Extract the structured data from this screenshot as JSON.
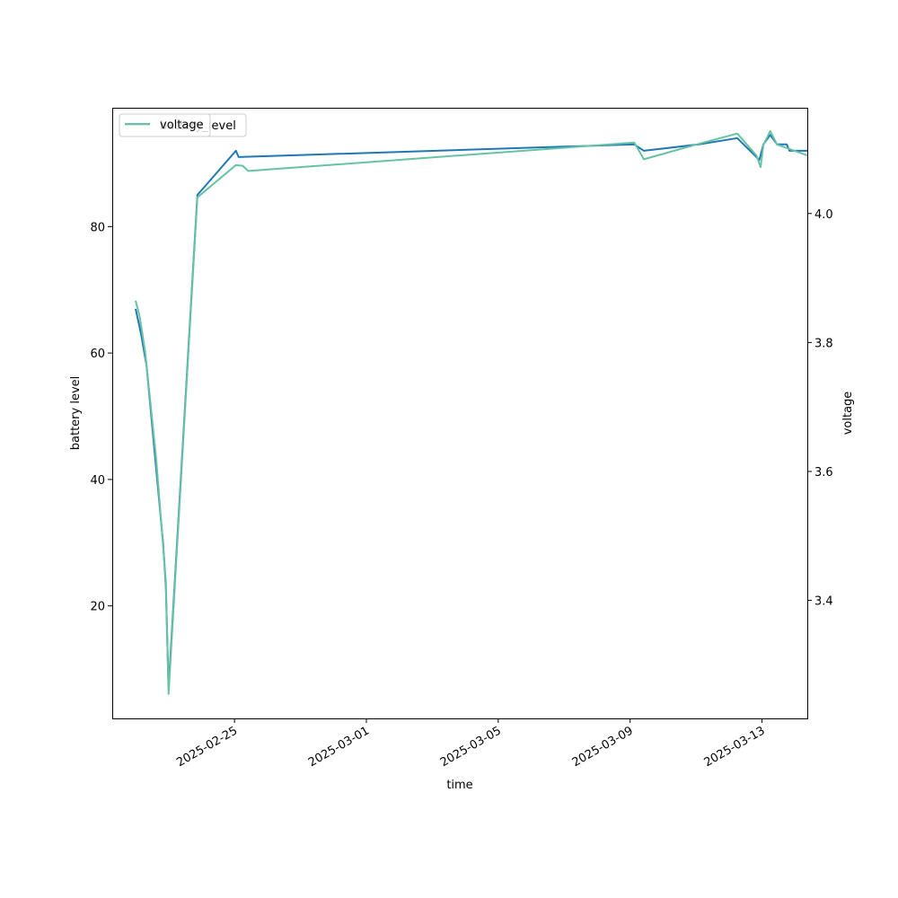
{
  "chart_data": {
    "type": "line",
    "title": "",
    "xlabel": "time",
    "ylabel": "battery level",
    "ylabel_right": "voltage",
    "x_ticks": [
      "2025-02-25",
      "2025-03-01",
      "2025-03-05",
      "2025-03-09",
      "2025-03-13"
    ],
    "y_ticks_left": [
      "20",
      "40",
      "60",
      "80"
    ],
    "y_ticks_right": [
      "3.4",
      "3.6",
      "3.8",
      "4.0"
    ],
    "xlim": [
      "2025-02-21T07:00",
      "2025-03-14T09:00"
    ],
    "ylim_left": [
      2.2,
      98.8
    ],
    "ylim_right": [
      3.217,
      4.164
    ],
    "legend_position": "upper-left",
    "series": [
      {
        "name": "battery_level",
        "axis": "left",
        "color": "#1f77b4",
        "points": [
          {
            "x": "2025-02-22T00:00",
            "y": 67
          },
          {
            "x": "2025-02-22T04:00",
            "y": 63
          },
          {
            "x": "2025-02-22T08:00",
            "y": 58
          },
          {
            "x": "2025-02-22T20:00",
            "y": 30
          },
          {
            "x": "2025-02-22T22:00",
            "y": 23
          },
          {
            "x": "2025-02-23T00:00",
            "y": 7
          },
          {
            "x": "2025-02-23T21:00",
            "y": 85
          },
          {
            "x": "2025-02-25T01:00",
            "y": 92
          },
          {
            "x": "2025-02-25T03:00",
            "y": 91
          },
          {
            "x": "2025-03-09T03:00",
            "y": 93
          },
          {
            "x": "2025-03-09T10:00",
            "y": 92
          },
          {
            "x": "2025-03-11T02:00",
            "y": 93
          },
          {
            "x": "2025-03-12T06:00",
            "y": 94
          },
          {
            "x": "2025-03-12T20:00",
            "y": 91
          },
          {
            "x": "2025-03-12T22:00",
            "y": 90.5
          },
          {
            "x": "2025-03-13T01:00",
            "y": 93
          },
          {
            "x": "2025-03-13T06:00",
            "y": 94.5
          },
          {
            "x": "2025-03-13T11:00",
            "y": 93
          },
          {
            "x": "2025-03-13T18:00",
            "y": 93
          },
          {
            "x": "2025-03-13T20:00",
            "y": 92
          },
          {
            "x": "2025-03-14T09:00",
            "y": 92
          }
        ]
      },
      {
        "name": "voltage",
        "axis": "right",
        "color": "#66c2a5",
        "points": [
          {
            "x": "2025-02-22T00:00",
            "y": 3.865
          },
          {
            "x": "2025-02-22T03:00",
            "y": 3.84
          },
          {
            "x": "2025-02-22T07:00",
            "y": 3.785
          },
          {
            "x": "2025-02-22T15:00",
            "y": 3.62
          },
          {
            "x": "2025-02-22T22:00",
            "y": 3.43
          },
          {
            "x": "2025-02-23T00:00",
            "y": 3.255
          },
          {
            "x": "2025-02-23T21:00",
            "y": 4.025
          },
          {
            "x": "2025-02-25T01:00",
            "y": 4.075
          },
          {
            "x": "2025-02-25T06:00",
            "y": 4.074
          },
          {
            "x": "2025-02-25T10:00",
            "y": 4.066
          },
          {
            "x": "2025-03-09T03:00",
            "y": 4.11
          },
          {
            "x": "2025-03-09T10:00",
            "y": 4.084
          },
          {
            "x": "2025-03-11T02:00",
            "y": 4.108
          },
          {
            "x": "2025-03-12T06:00",
            "y": 4.124
          },
          {
            "x": "2025-03-12T20:00",
            "y": 4.09
          },
          {
            "x": "2025-03-12T23:00",
            "y": 4.072
          },
          {
            "x": "2025-03-13T01:00",
            "y": 4.106
          },
          {
            "x": "2025-03-13T06:00",
            "y": 4.128
          },
          {
            "x": "2025-03-13T11:00",
            "y": 4.107
          },
          {
            "x": "2025-03-14T09:00",
            "y": 4.09
          }
        ]
      }
    ]
  }
}
